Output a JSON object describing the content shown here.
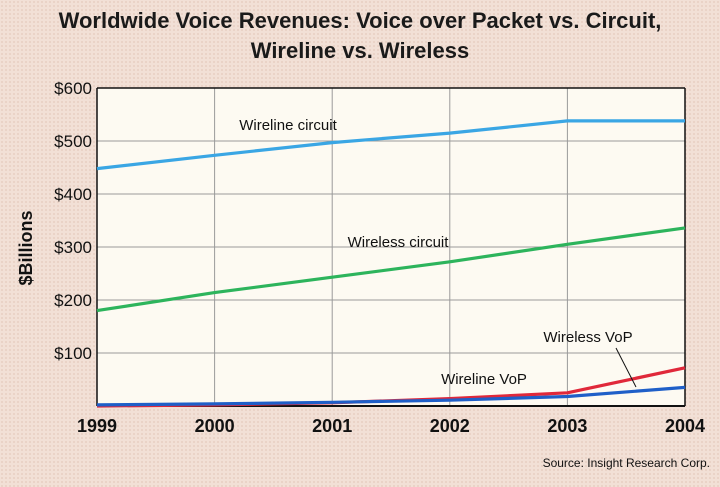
{
  "chart_data": {
    "type": "line",
    "title_line1": "Worldwide Voice Revenues: Voice over Packet vs. Circuit,",
    "title_line2": "Wireline vs. Wireless",
    "ylabel": "$Billions",
    "xlabel": "",
    "x": [
      "1999",
      "2000",
      "2001",
      "2002",
      "2003",
      "2004"
    ],
    "ylim": [
      0,
      600
    ],
    "yticks": [
      {
        "value": 100,
        "label": "$100"
      },
      {
        "value": 200,
        "label": "$200"
      },
      {
        "value": 300,
        "label": "$300"
      },
      {
        "value": 400,
        "label": "$400"
      },
      {
        "value": 500,
        "label": "$500"
      },
      {
        "value": 600,
        "label": "$600"
      }
    ],
    "grid": true,
    "series": [
      {
        "name": "Wireline circuit",
        "color": "#3aa6e4",
        "values": [
          448,
          473,
          497,
          515,
          538,
          538
        ]
      },
      {
        "name": "Wireless circuit",
        "color": "#2db45c",
        "values": [
          180,
          214,
          243,
          272,
          305,
          336
        ]
      },
      {
        "name": "Wireless VoP",
        "color": "#e0283a",
        "values": [
          0,
          2,
          6,
          14,
          25,
          72
        ]
      },
      {
        "name": "Wireline VoP",
        "color": "#1f5fc8",
        "values": [
          2,
          4,
          7,
          11,
          18,
          35
        ]
      }
    ],
    "source": "Source: Insight Research Corp."
  }
}
